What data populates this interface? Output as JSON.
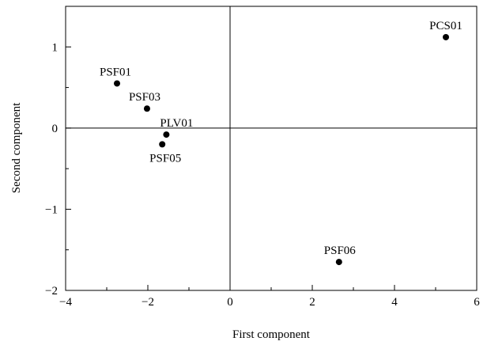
{
  "chart_data": {
    "type": "scatter",
    "xlabel": "First component",
    "ylabel": "Second component",
    "xlim": [
      -4,
      6
    ],
    "ylim": [
      -2,
      1.5
    ],
    "xticks": [
      -4,
      -2,
      0,
      2,
      4,
      6
    ],
    "yticks": [
      -2,
      -1,
      0,
      1
    ],
    "xtick_labels": [
      "−4",
      "−2",
      "0",
      "2",
      "4",
      "6"
    ],
    "ytick_labels": [
      "−2",
      "−1",
      "0",
      "1"
    ],
    "reference_lines": {
      "x": 0,
      "y": 0
    },
    "grid": false,
    "legend": "none",
    "point_color": "#000000",
    "points": [
      {
        "label": "PSF01",
        "x": -2.75,
        "y": 0.55
      },
      {
        "label": "PSF03",
        "x": -2.02,
        "y": 0.24
      },
      {
        "label": "PLV01",
        "x": -1.55,
        "y": -0.08
      },
      {
        "label": "PSF05",
        "x": -1.65,
        "y": -0.2
      },
      {
        "label": "PCS01",
        "x": 5.25,
        "y": 1.12
      },
      {
        "label": "PSF06",
        "x": 2.65,
        "y": -1.65
      }
    ]
  }
}
